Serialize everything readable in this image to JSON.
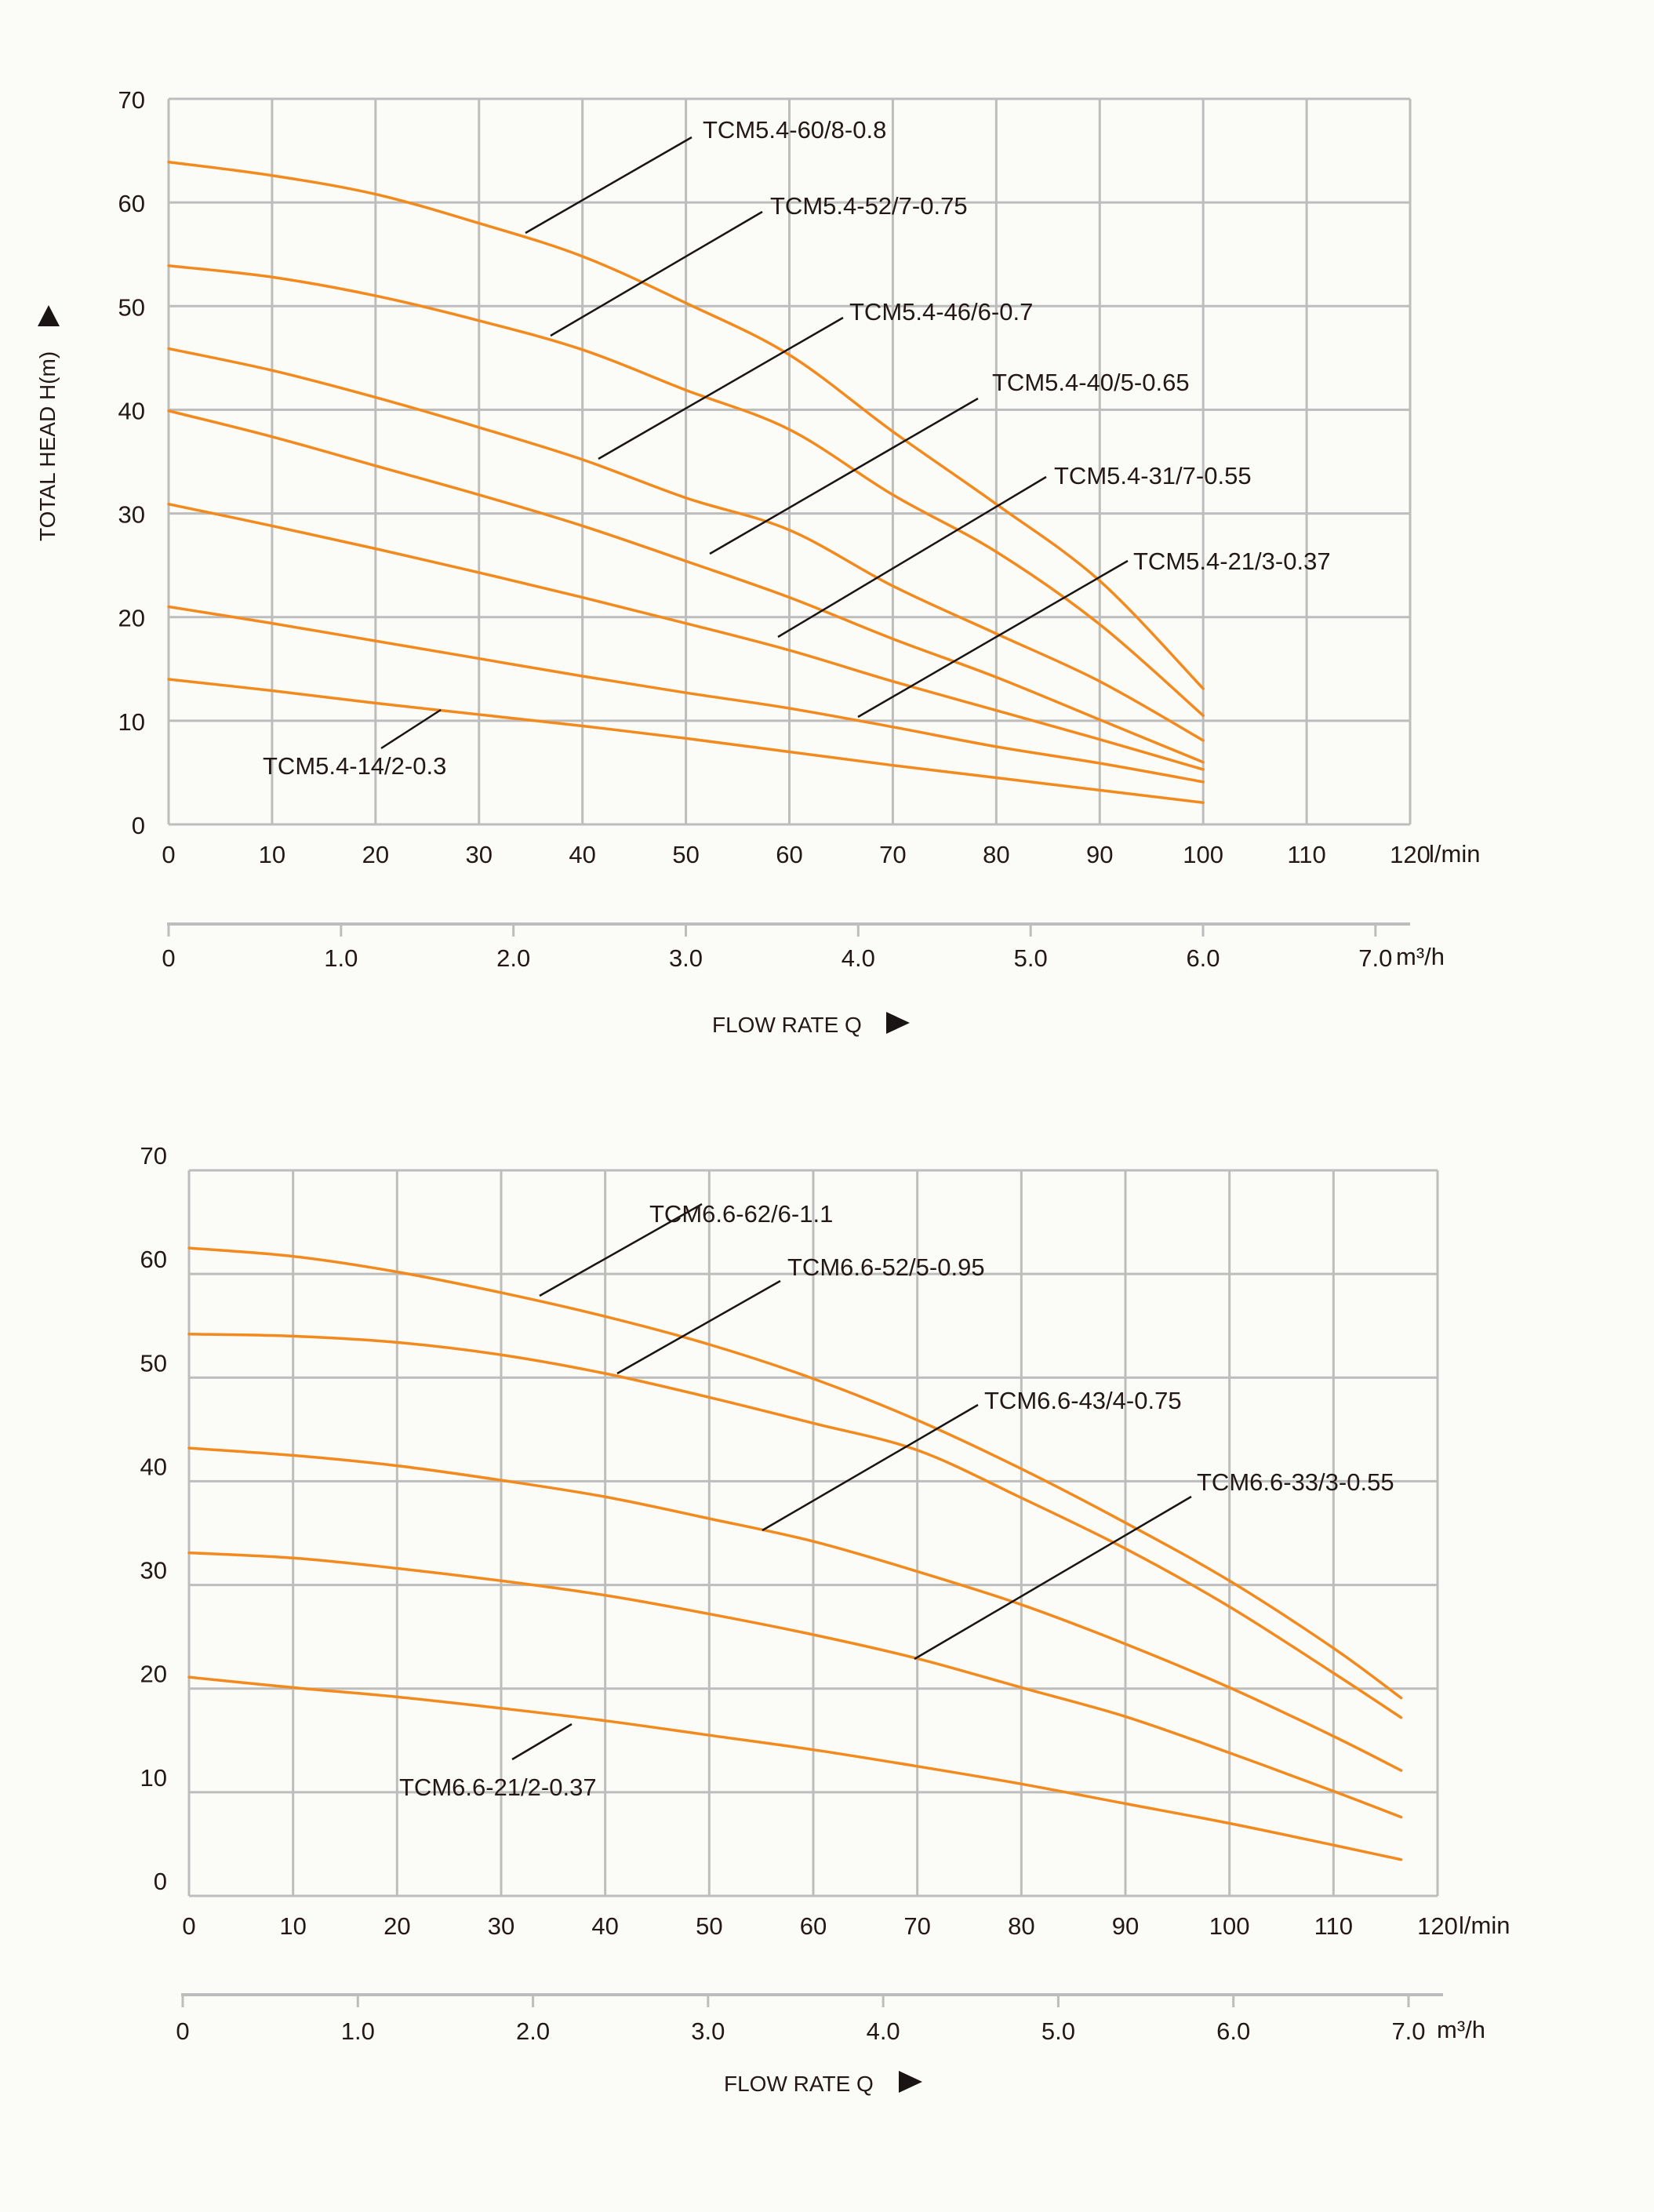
{
  "chart_data": [
    {
      "type": "line",
      "title": "",
      "xlabel": "FLOW RATE Q",
      "ylabel": "TOTAL HEAD H(m)",
      "x_unit": "l/min",
      "secondary_x_unit": "m³/h",
      "xlim": [
        0,
        120
      ],
      "ylim": [
        0,
        70
      ],
      "grid": true,
      "x_ticks": [
        "0",
        "10",
        "20",
        "30",
        "40",
        "50",
        "60",
        "70",
        "80",
        "90",
        "100",
        "110",
        "120"
      ],
      "y_ticks": [
        "0",
        "10",
        "20",
        "30",
        "40",
        "50",
        "60",
        "70"
      ],
      "secondary_x_ticks": [
        "0",
        "1.0",
        "2.0",
        "3.0",
        "4.0",
        "5.0",
        "6.0",
        "7.0"
      ],
      "secondary_xlim": [
        0,
        7.0
      ],
      "x": [
        0,
        10,
        20,
        30,
        40,
        50,
        60,
        70,
        80,
        90,
        100
      ],
      "series": [
        {
          "name": "TCM5.4-60/8-0.8",
          "values": [
            63.9,
            62.6,
            60.8,
            58.0,
            54.8,
            50.3,
            45.3,
            37.9,
            30.9,
            23.5,
            13.1
          ]
        },
        {
          "name": "TCM5.4-52/7-0.75",
          "values": [
            53.9,
            52.8,
            51.0,
            48.6,
            45.8,
            41.9,
            38.1,
            31.8,
            26.3,
            19.3,
            10.5
          ]
        },
        {
          "name": "TCM5.4-46/6-0.7",
          "values": [
            45.9,
            43.8,
            41.2,
            38.3,
            35.2,
            31.5,
            28.4,
            23.0,
            18.4,
            13.8,
            8.1
          ]
        },
        {
          "name": "TCM5.4-40/5-0.65",
          "values": [
            39.9,
            37.4,
            34.6,
            31.8,
            28.8,
            25.4,
            21.9,
            17.9,
            14.2,
            10.1,
            6.0
          ]
        },
        {
          "name": "TCM5.4-31/7-0.55",
          "values": [
            30.9,
            28.8,
            26.6,
            24.3,
            21.9,
            19.4,
            16.8,
            13.8,
            11.0,
            8.2,
            5.3
          ]
        },
        {
          "name": "TCM5.4-21/3-0.37",
          "values": [
            21.0,
            19.4,
            17.7,
            16.0,
            14.3,
            12.7,
            11.2,
            9.4,
            7.5,
            5.9,
            4.1
          ]
        },
        {
          "name": "TCM5.4-14/2-0.3",
          "values": [
            14.0,
            12.9,
            11.7,
            10.6,
            9.5,
            8.3,
            7.0,
            5.7,
            4.5,
            3.3,
            2.1
          ]
        }
      ],
      "annotations": [
        "TCM5.4-60/8-0.8",
        "TCM5.4-52/7-0.75",
        "TCM5.4-46/6-0.7",
        "TCM5.4-40/5-0.65",
        "TCM5.4-31/7-0.55",
        "TCM5.4-21/3-0.37",
        "TCM5.4-14/2-0.3"
      ]
    },
    {
      "type": "line",
      "title": "",
      "xlabel": "FLOW RATE Q",
      "ylabel": "",
      "x_unit": "l/min",
      "secondary_x_unit": "m³/h",
      "xlim": [
        0,
        120
      ],
      "ylim": [
        0,
        70
      ],
      "grid": true,
      "x_ticks": [
        "0",
        "10",
        "20",
        "30",
        "40",
        "50",
        "60",
        "70",
        "80",
        "90",
        "100",
        "110",
        "120"
      ],
      "y_ticks": [
        "0",
        "10",
        "20",
        "30",
        "40",
        "50",
        "60",
        "70"
      ],
      "secondary_x_ticks": [
        "0",
        "1.0",
        "2.0",
        "3.0",
        "4.0",
        "5.0",
        "6.0",
        "7.0"
      ],
      "secondary_xlim": [
        0,
        7.0
      ],
      "x": [
        0,
        10,
        20,
        30,
        40,
        50,
        60,
        70,
        80,
        90,
        100,
        110,
        116.5
      ],
      "series": [
        {
          "name": "TCM6.6-62/6-1.1",
          "values": [
            62.5,
            61.7,
            60.2,
            58.2,
            55.9,
            53.2,
            49.9,
            45.9,
            41.2,
            36.0,
            30.4,
            23.9,
            19.1
          ]
        },
        {
          "name": "TCM6.6-52/5-0.95",
          "values": [
            54.2,
            54.0,
            53.4,
            52.2,
            50.4,
            48.1,
            45.6,
            43.0,
            38.4,
            33.5,
            27.9,
            21.5,
            17.2
          ]
        },
        {
          "name": "TCM6.6-43/4-0.75",
          "values": [
            43.2,
            42.5,
            41.5,
            40.1,
            38.5,
            36.4,
            34.2,
            31.3,
            28.1,
            24.3,
            20.1,
            15.4,
            12.1
          ]
        },
        {
          "name": "TCM6.6-33/3-0.55",
          "values": [
            33.1,
            32.6,
            31.6,
            30.4,
            29.0,
            27.2,
            25.2,
            22.9,
            20.1,
            17.3,
            13.8,
            10.1,
            7.6
          ]
        },
        {
          "name": "TCM6.6-21/2-0.37",
          "values": [
            21.1,
            20.1,
            19.2,
            18.1,
            16.9,
            15.5,
            14.1,
            12.5,
            10.8,
            8.9,
            7.0,
            4.9,
            3.5
          ]
        }
      ],
      "annotations": [
        "TCM6.6-62/6-1.1",
        "TCM6.6-52/5-0.95",
        "TCM6.6-43/4-0.75",
        "TCM6.6-33/3-0.55",
        "TCM6.6-21/2-0.37"
      ]
    }
  ],
  "labels": {
    "x_unit": "l/min",
    "secondary_unit": "m³/h",
    "flow_rate": "FLOW RATE Q",
    "total_head": "TOTAL HEAD H(m)"
  },
  "colors": {
    "curve": "#f28a1e",
    "grid": "#bdbdbd",
    "text": "#231816",
    "background": "#fbfbf7"
  }
}
